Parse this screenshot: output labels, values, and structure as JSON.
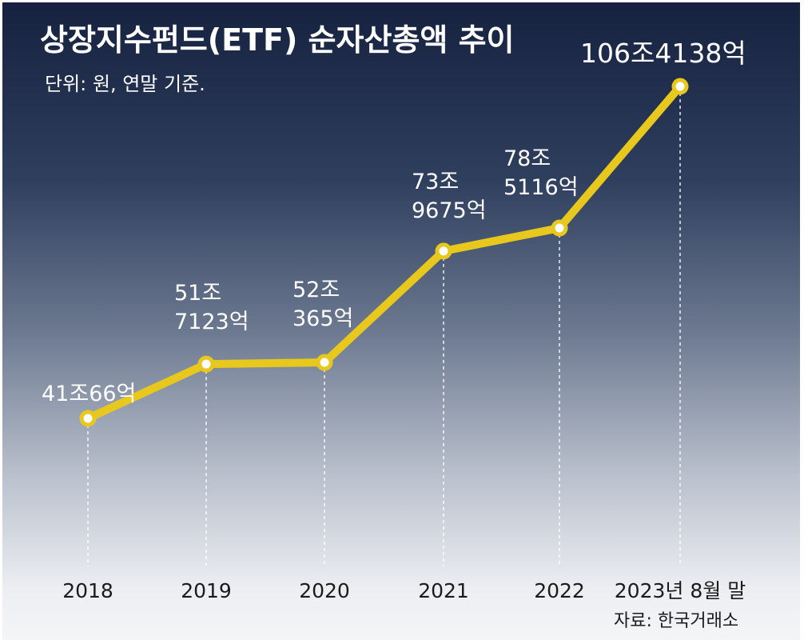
{
  "title": "상장지수펀드(ETF) 순자산총액 추이",
  "subtitle": "단위: 원, 연말 기준.",
  "source": "자료: 한국거래소",
  "colors": {
    "line": "#e8c81c",
    "point_fill": "#ffffff"
  },
  "chart_data": {
    "type": "line",
    "title": "상장지수펀드(ETF) 순자산총액 추이",
    "xlabel": "",
    "ylabel": "",
    "unit": "원",
    "grid": false,
    "legend": "none",
    "categories": [
      "2018",
      "2019",
      "2020",
      "2021",
      "2022",
      "2023년 8월 말"
    ],
    "values_trillion_won": [
      41.0066,
      51.7123,
      52.0365,
      73.9675,
      78.5116,
      106.4138
    ],
    "labels": [
      [
        "41조66억"
      ],
      [
        "51조",
        "7123억"
      ],
      [
        "52조",
        "365억"
      ],
      [
        "73조",
        "9675억"
      ],
      [
        "78조",
        "5116억"
      ],
      [
        "106조4138억"
      ]
    ],
    "ylim": [
      15,
      125
    ]
  }
}
